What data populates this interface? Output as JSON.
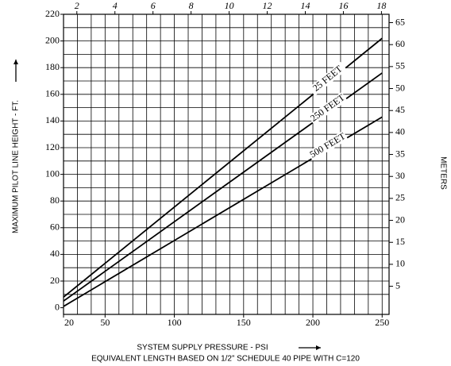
{
  "chart_data": {
    "type": "line",
    "x_label": "SYSTEM SUPPLY PRESSURE - PSI",
    "subtitle": "EQUIVALENT LENGTH BASED ON 1/2” SCHEDULE 40 PIPE WITH C=120",
    "y_label": "MAXIMUM PILOT LINE HEIGHT - FT.",
    "y2_label": "METERS",
    "x": [
      20,
      250
    ],
    "series": [
      {
        "name": "25 FEET",
        "color": "#000000",
        "values": [
          8,
          202
        ]
      },
      {
        "name": "250 FEET",
        "color": "#000000",
        "values": [
          5,
          176
        ]
      },
      {
        "name": "500 FEET",
        "color": "#000000",
        "values": [
          1,
          143
        ]
      }
    ],
    "xlim": [
      20,
      255
    ],
    "xticks": [
      20,
      50,
      100,
      150,
      200,
      250
    ],
    "x2lim": [
      1.3,
      18.4
    ],
    "x2ticks": [
      2,
      4,
      6,
      8,
      10,
      12,
      14,
      16,
      18
    ],
    "ylim": [
      -5,
      220
    ],
    "yticks": [
      0,
      20,
      40,
      60,
      80,
      100,
      120,
      140,
      160,
      180,
      200,
      220
    ],
    "y2lim": [
      -1.4,
      66.9
    ],
    "y2ticks": [
      5,
      10,
      15,
      20,
      25,
      30,
      35,
      40,
      45,
      50,
      55,
      60,
      65
    ],
    "grid": true
  }
}
